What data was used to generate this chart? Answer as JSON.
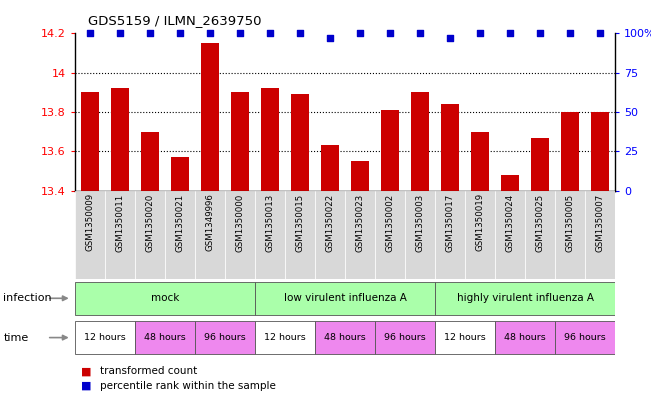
{
  "title": "GDS5159 / ILMN_2639750",
  "samples": [
    "GSM1350009",
    "GSM1350011",
    "GSM1350020",
    "GSM1350021",
    "GSM1349996",
    "GSM1350000",
    "GSM1350013",
    "GSM1350015",
    "GSM1350022",
    "GSM1350023",
    "GSM1350002",
    "GSM1350003",
    "GSM1350017",
    "GSM1350019",
    "GSM1350024",
    "GSM1350025",
    "GSM1350005",
    "GSM1350007"
  ],
  "bar_values": [
    13.9,
    13.92,
    13.7,
    13.57,
    14.15,
    13.9,
    13.92,
    13.89,
    13.63,
    13.55,
    13.81,
    13.9,
    13.84,
    13.7,
    13.48,
    13.67,
    13.8,
    13.8
  ],
  "percentile_values": [
    100,
    100,
    100,
    100,
    100,
    100,
    100,
    100,
    97,
    100,
    100,
    100,
    97,
    100,
    100,
    100,
    100,
    100
  ],
  "ylim_left": [
    13.4,
    14.2
  ],
  "ylim_right": [
    0,
    100
  ],
  "yticks_left": [
    13.4,
    13.6,
    13.8,
    14.0,
    14.2
  ],
  "ytick_labels_left": [
    "13.4",
    "13.6",
    "13.8",
    "14",
    "14.2"
  ],
  "yticks_right": [
    0,
    25,
    50,
    75,
    100
  ],
  "ytick_labels_right": [
    "0",
    "25",
    "50",
    "75",
    "100%"
  ],
  "bar_color": "#cc0000",
  "dot_color": "#0000cc",
  "grid_lines": [
    13.6,
    13.8,
    14.0
  ],
  "inf_groups": [
    {
      "label": "mock",
      "start": 0,
      "end": 5
    },
    {
      "label": "low virulent influenza A",
      "start": 6,
      "end": 11
    },
    {
      "label": "highly virulent influenza A",
      "start": 12,
      "end": 17
    }
  ],
  "inf_color": "#aaffaa",
  "time_segments": [
    {
      "label": "12 hours",
      "start": 0,
      "end": 1,
      "color": "#ffffff"
    },
    {
      "label": "48 hours",
      "start": 2,
      "end": 3,
      "color": "#ee88ee"
    },
    {
      "label": "96 hours",
      "start": 4,
      "end": 5,
      "color": "#ee88ee"
    },
    {
      "label": "12 hours",
      "start": 6,
      "end": 7,
      "color": "#ffffff"
    },
    {
      "label": "48 hours",
      "start": 8,
      "end": 9,
      "color": "#ee88ee"
    },
    {
      "label": "96 hours",
      "start": 10,
      "end": 11,
      "color": "#ee88ee"
    },
    {
      "label": "12 hours",
      "start": 12,
      "end": 13,
      "color": "#ffffff"
    },
    {
      "label": "48 hours",
      "start": 14,
      "end": 15,
      "color": "#ee88ee"
    },
    {
      "label": "96 hours",
      "start": 16,
      "end": 17,
      "color": "#ee88ee"
    }
  ],
  "legend_bar_label": "transformed count",
  "legend_dot_label": "percentile rank within the sample",
  "infection_label": "infection",
  "time_label": "time",
  "sample_bg_color": "#d8d8d8",
  "fig_width": 6.51,
  "fig_height": 3.93,
  "fig_dpi": 100
}
